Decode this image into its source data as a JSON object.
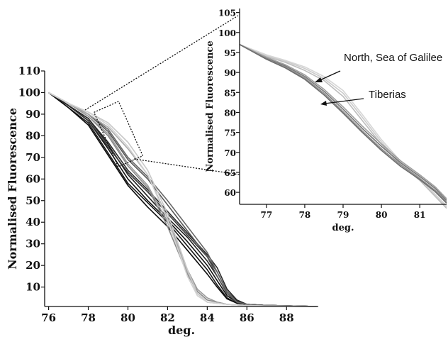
{
  "chart_data": [
    {
      "type": "line",
      "name": "main",
      "xlabel": "deg.",
      "ylabel": "Normalised Fluorescence",
      "xlim": [
        75.8,
        89.6
      ],
      "ylim": [
        1,
        110
      ],
      "xticks": [
        76,
        78,
        80,
        82,
        84,
        86,
        88
      ],
      "yticks": [
        10,
        20,
        30,
        40,
        50,
        60,
        70,
        80,
        90,
        100,
        110
      ],
      "grid": false,
      "series": [
        {
          "color": "#111111",
          "x": [
            76,
            77,
            78,
            79,
            80,
            81,
            82,
            83,
            84,
            84.5,
            85,
            85.5,
            86,
            87,
            89.5
          ],
          "y": [
            100,
            94,
            87,
            74,
            60,
            50,
            41,
            31,
            20,
            13,
            6,
            3,
            2,
            1.5,
            1
          ]
        },
        {
          "color": "#222222",
          "x": [
            76,
            77,
            78,
            79,
            80,
            81,
            82,
            83,
            84,
            84.5,
            85,
            85.5,
            86,
            87,
            89.5
          ],
          "y": [
            100,
            94,
            88,
            76,
            62,
            52,
            42,
            33,
            22,
            15,
            7,
            3,
            2,
            1.5,
            1
          ]
        },
        {
          "color": "#1a1a1a",
          "x": [
            76,
            77,
            78,
            79,
            80,
            81,
            82,
            83,
            84,
            84.5,
            85,
            85.5,
            86,
            87,
            89.5
          ],
          "y": [
            100,
            93,
            86,
            72,
            58,
            49,
            40,
            29,
            18,
            11,
            5,
            2.5,
            2,
            1.5,
            1
          ]
        },
        {
          "color": "#333333",
          "x": [
            76,
            77,
            78,
            79,
            80,
            81,
            82,
            83,
            84,
            84.5,
            85,
            85.5,
            86,
            87,
            89.5
          ],
          "y": [
            100,
            94,
            87,
            75,
            63,
            54,
            44,
            34,
            24,
            17,
            8,
            3.5,
            2,
            1.5,
            1
          ]
        },
        {
          "color": "#0d0d0d",
          "x": [
            76,
            77,
            78,
            79,
            80,
            81,
            82,
            83,
            84,
            84.5,
            85,
            85.5,
            86,
            87,
            89.5
          ],
          "y": [
            100,
            93,
            85,
            71,
            57,
            47,
            38,
            27,
            16,
            10,
            4.5,
            2.5,
            2,
            1.5,
            1
          ]
        },
        {
          "color": "#2a2a2a",
          "x": [
            76,
            77,
            78,
            79,
            80,
            81,
            82,
            83,
            84,
            84.5,
            85,
            85.5,
            86,
            87,
            89.5
          ],
          "y": [
            100,
            94,
            88,
            77,
            64,
            55,
            45,
            35,
            25,
            19,
            9,
            4,
            2,
            1.5,
            1
          ]
        },
        {
          "color": "#555555",
          "x": [
            76,
            77,
            78,
            79,
            80,
            81,
            82,
            83,
            84,
            84.5,
            85,
            85.5,
            86,
            87,
            89.5
          ],
          "y": [
            100,
            95,
            90,
            82,
            69,
            60,
            48,
            36,
            24,
            15,
            7,
            3,
            2,
            1.5,
            1
          ]
        },
        {
          "color": "#666666",
          "x": [
            76,
            77,
            78,
            79,
            80,
            81,
            82,
            83,
            84,
            84.5,
            85,
            85.5,
            86,
            87,
            89.5
          ],
          "y": [
            100,
            95,
            90,
            83,
            70,
            61,
            50,
            38,
            26,
            17,
            8,
            3,
            2,
            1.5,
            1
          ]
        },
        {
          "color": "#888888",
          "x": [
            76,
            77,
            78,
            79,
            80,
            81,
            82,
            83,
            83.5,
            84,
            84.5,
            85,
            86,
            87,
            89.5
          ],
          "y": [
            100,
            95,
            89,
            80,
            66,
            56,
            38,
            16,
            8,
            4,
            3,
            2,
            1.5,
            1.2,
            1
          ]
        },
        {
          "color": "#999999",
          "x": [
            76,
            77,
            78,
            79,
            80,
            81,
            82,
            83,
            83.5,
            84,
            84.5,
            85,
            86,
            87,
            89.5
          ],
          "y": [
            100,
            95,
            89,
            81,
            67,
            57,
            40,
            18,
            9,
            5,
            3,
            2,
            1.5,
            1.2,
            1
          ]
        },
        {
          "color": "#aaaaaa",
          "x": [
            76,
            77,
            78,
            79,
            80,
            81,
            82,
            83,
            83.5,
            84,
            84.5,
            85,
            86,
            87,
            89.5
          ],
          "y": [
            100,
            95,
            90,
            84,
            74,
            62,
            42,
            17,
            7,
            3,
            2.5,
            2,
            1.5,
            1.2,
            1
          ]
        },
        {
          "color": "#c8c8c8",
          "x": [
            76,
            77,
            78,
            79,
            80,
            81,
            82,
            83,
            83.5,
            84,
            84.5,
            85,
            86,
            87,
            89.5
          ],
          "y": [
            100,
            95,
            91,
            86,
            77,
            64,
            44,
            18,
            7,
            3,
            2.5,
            2,
            1.5,
            1.2,
            1
          ]
        },
        {
          "color": "#d2d2d2",
          "x": [
            76,
            77,
            78,
            79,
            80,
            81,
            82,
            83,
            83.5,
            84,
            84.5,
            85,
            86,
            87,
            89.5
          ],
          "y": [
            100,
            95,
            91,
            85,
            75,
            62,
            41,
            15,
            6,
            3,
            2.5,
            2,
            1.5,
            1.2,
            1
          ]
        }
      ]
    },
    {
      "type": "line",
      "name": "inset",
      "xlabel": "deg.",
      "ylabel": "Normalised Fluorescence",
      "xlim": [
        76.3,
        81.7
      ],
      "ylim": [
        57,
        106
      ],
      "xticks": [
        77,
        78,
        79,
        80,
        81
      ],
      "yticks": [
        60,
        65,
        70,
        75,
        80,
        85,
        90,
        95,
        100,
        105
      ],
      "grid": false,
      "annotations": [
        "North, Sea of Galilee",
        "Tiberias"
      ],
      "series": [
        {
          "group": "North, Sea of Galilee",
          "color": "#bdbdbd",
          "x": [
            76.3,
            77,
            77.5,
            78,
            78.5,
            79,
            79.5,
            80,
            80.5,
            81,
            81.4,
            81.7
          ],
          "y": [
            97,
            94,
            92.5,
            90.5,
            88,
            84,
            78,
            72,
            67,
            63,
            59,
            56
          ]
        },
        {
          "group": "North, Sea of Galilee",
          "color": "#cccccc",
          "x": [
            76.3,
            77,
            77.5,
            78,
            78.5,
            79,
            79.5,
            80,
            80.5,
            81,
            81.4,
            81.7
          ],
          "y": [
            97,
            94.2,
            92.8,
            91,
            88.5,
            84.8,
            78.8,
            72.6,
            67.4,
            63.3,
            59.3,
            56.3
          ]
        },
        {
          "group": "North, Sea of Galilee",
          "color": "#d6d6d6",
          "x": [
            76.3,
            77,
            77.5,
            78,
            78.5,
            79,
            79.5,
            80,
            80.5,
            81,
            81.4,
            81.7
          ],
          "y": [
            97,
            94.4,
            93,
            91.4,
            89,
            85.5,
            79.5,
            73.2,
            67.8,
            63.6,
            59.6,
            56.6
          ]
        },
        {
          "group": "Tiberias",
          "color": "#777777",
          "x": [
            76.3,
            77,
            77.5,
            78,
            78.5,
            79,
            79.5,
            80,
            80.5,
            81,
            81.4,
            81.7
          ],
          "y": [
            97,
            93.6,
            91.6,
            89,
            85.3,
            80.8,
            76,
            71.5,
            67.4,
            64,
            61,
            58
          ]
        },
        {
          "group": "Tiberias",
          "color": "#8c8c8c",
          "x": [
            76.3,
            77,
            77.5,
            78,
            78.5,
            79,
            79.5,
            80,
            80.5,
            81,
            81.4,
            81.7
          ],
          "y": [
            97,
            93.4,
            91.3,
            88.6,
            84.8,
            80.2,
            75.4,
            70.9,
            66.9,
            63.5,
            60.5,
            57.6
          ]
        },
        {
          "group": "Tiberias",
          "color": "#9f9f9f",
          "x": [
            76.3,
            77,
            77.5,
            78,
            78.5,
            79,
            79.5,
            80,
            80.5,
            81,
            81.4,
            81.7
          ],
          "y": [
            97,
            93.8,
            91.9,
            89.4,
            85.8,
            81.4,
            76.6,
            72.1,
            67.9,
            64.4,
            61.4,
            58.4
          ]
        },
        {
          "group": "Tiberias",
          "color": "#6e6e6e",
          "x": [
            76.3,
            77,
            77.5,
            78,
            78.5,
            79,
            79.5,
            80,
            80.5,
            81,
            81.4,
            81.7
          ],
          "y": [
            97,
            93.3,
            91.1,
            88.3,
            84.4,
            79.8,
            75,
            70.5,
            66.5,
            63.2,
            60.2,
            57.3
          ]
        }
      ]
    }
  ]
}
